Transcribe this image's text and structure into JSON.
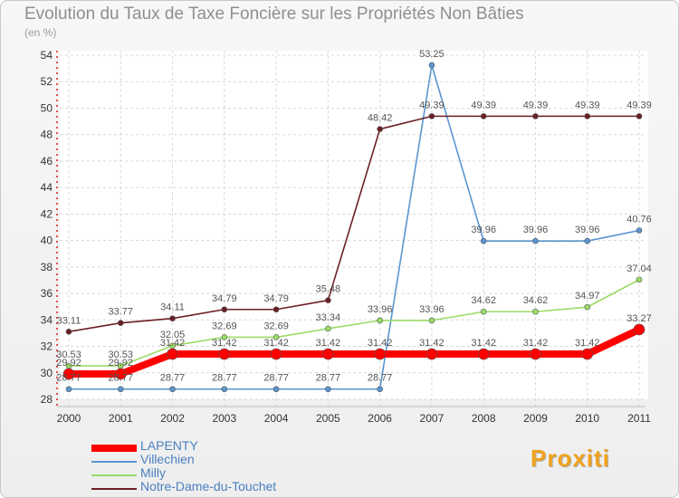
{
  "page": {
    "title": "Evolution du Taux de Taxe Foncière sur les Propriétés Non Bâties",
    "subtitle": "(en %)",
    "logo": "Proxiti"
  },
  "chart_data": {
    "type": "line",
    "title": "Evolution du Taux de Taxe Foncière sur les Propriétés Non Bâties",
    "ylabel": "(en %)",
    "xlabel": "",
    "categories": [
      "2000",
      "2001",
      "2002",
      "2003",
      "2004",
      "2005",
      "2006",
      "2007",
      "2008",
      "2009",
      "2010",
      "2011"
    ],
    "ylim": [
      28,
      54
    ],
    "yticks": [
      "28",
      "30",
      "32",
      "34",
      "36",
      "38",
      "40",
      "42",
      "44",
      "46",
      "48",
      "50",
      "52",
      "54"
    ],
    "grid": true,
    "legend_position": "bottom-left",
    "series": [
      {
        "name": "LAPENTY",
        "color": "#ff0000",
        "values": [
          29.92,
          29.92,
          31.42,
          31.42,
          31.42,
          31.42,
          31.42,
          31.42,
          31.42,
          31.42,
          31.42,
          33.27
        ],
        "labels": [
          "29.92",
          "29.92",
          "31.42",
          "31.42",
          "31.42",
          "31.42",
          "31.42",
          "31.42",
          "31.42",
          "31.42",
          "31.42",
          "33.27"
        ]
      },
      {
        "name": "Villechien",
        "color": "#5a96d0",
        "values": [
          28.77,
          28.77,
          28.77,
          28.77,
          28.77,
          28.77,
          28.77,
          53.25,
          39.96,
          39.96,
          39.96,
          40.76
        ],
        "labels": [
          "28.77",
          "28.77",
          "28.77",
          "28.77",
          "28.77",
          "28.77",
          "28.77",
          "53.25",
          "39.96",
          "39.96",
          "39.96",
          "40.76"
        ]
      },
      {
        "name": "Milly",
        "color": "#99dd66",
        "values": [
          30.53,
          30.53,
          32.05,
          32.69,
          32.69,
          33.34,
          33.96,
          33.96,
          34.62,
          34.62,
          34.97,
          37.04
        ],
        "labels": [
          "30.53",
          "30.53",
          "32.05",
          "32.69",
          "32.69",
          "33.34",
          "33.96",
          "33.96",
          "34.62",
          "34.62",
          "34.97",
          "37.04"
        ]
      },
      {
        "name": "Notre-Dame-du-Touchet",
        "color": "#6b1f24",
        "values": [
          33.11,
          33.77,
          34.11,
          34.79,
          34.79,
          35.48,
          48.42,
          49.39,
          49.39,
          49.39,
          49.39,
          49.39
        ],
        "labels": [
          "33.11",
          "33.77",
          "34.11",
          "34.79",
          "34.79",
          "35.48",
          "48.42",
          "49.39",
          "49.39",
          "49.39",
          "49.39",
          "49.39"
        ]
      }
    ]
  }
}
